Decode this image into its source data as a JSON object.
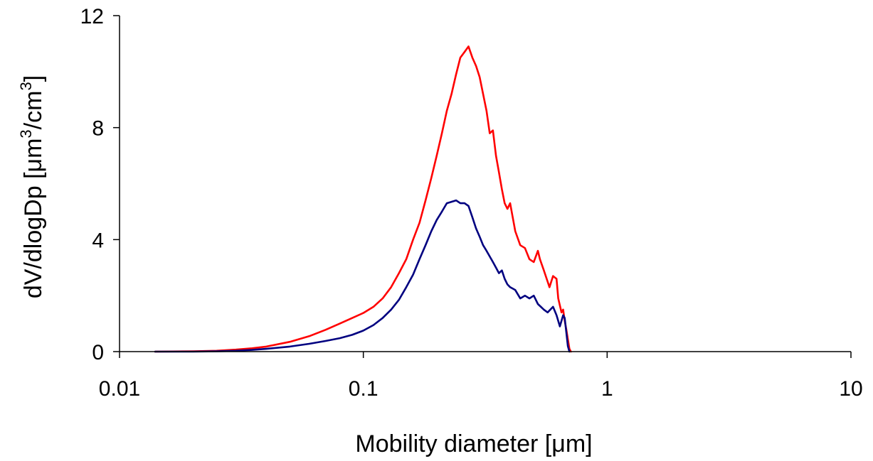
{
  "chart_data": {
    "type": "line",
    "title": "",
    "xlabel": "Mobility diameter [μm]",
    "ylabel": "dV/dlogDp [μm3/cm3]",
    "xscale": "log",
    "xlim": [
      0.01,
      10
    ],
    "ylim": [
      0,
      12
    ],
    "x_ticks": [
      "0.01",
      "0.1",
      "1",
      "10"
    ],
    "y_ticks": [
      "0",
      "4",
      "8",
      "12"
    ],
    "grid": false,
    "legend": "none",
    "series": [
      {
        "color": "#ff0000",
        "x": [
          0.014,
          0.02,
          0.025,
          0.03,
          0.035,
          0.04,
          0.05,
          0.06,
          0.07,
          0.08,
          0.09,
          0.1,
          0.11,
          0.12,
          0.13,
          0.14,
          0.15,
          0.16,
          0.17,
          0.18,
          0.19,
          0.2,
          0.21,
          0.22,
          0.23,
          0.24,
          0.25,
          0.26,
          0.27,
          0.28,
          0.29,
          0.3,
          0.31,
          0.32,
          0.33,
          0.34,
          0.35,
          0.36,
          0.37,
          0.38,
          0.39,
          0.4,
          0.41,
          0.42,
          0.44,
          0.46,
          0.48,
          0.5,
          0.52,
          0.53,
          0.55,
          0.57,
          0.58,
          0.6,
          0.62,
          0.63,
          0.65,
          0.66,
          0.67,
          0.68,
          0.7,
          0.71
        ],
        "y": [
          0,
          0.01,
          0.03,
          0.07,
          0.12,
          0.18,
          0.35,
          0.55,
          0.78,
          1.0,
          1.2,
          1.38,
          1.6,
          1.9,
          2.3,
          2.8,
          3.3,
          4.0,
          4.6,
          5.4,
          6.2,
          7.0,
          7.8,
          8.6,
          9.2,
          9.9,
          10.5,
          10.7,
          10.9,
          10.5,
          10.2,
          9.8,
          9.2,
          8.6,
          7.8,
          7.9,
          7.0,
          6.4,
          5.8,
          5.3,
          5.1,
          5.3,
          4.8,
          4.3,
          3.8,
          3.7,
          3.3,
          3.2,
          3.6,
          3.3,
          2.9,
          2.5,
          2.3,
          2.7,
          2.6,
          1.9,
          1.4,
          1.5,
          1.1,
          0.8,
          0.1,
          0
        ]
      },
      {
        "color": "#000080",
        "x": [
          0.014,
          0.02,
          0.025,
          0.03,
          0.035,
          0.04,
          0.05,
          0.06,
          0.07,
          0.08,
          0.09,
          0.1,
          0.11,
          0.12,
          0.13,
          0.14,
          0.15,
          0.16,
          0.17,
          0.18,
          0.19,
          0.2,
          0.21,
          0.22,
          0.23,
          0.24,
          0.25,
          0.26,
          0.27,
          0.28,
          0.29,
          0.3,
          0.31,
          0.32,
          0.33,
          0.34,
          0.35,
          0.36,
          0.37,
          0.38,
          0.39,
          0.4,
          0.42,
          0.44,
          0.46,
          0.48,
          0.5,
          0.52,
          0.55,
          0.57,
          0.6,
          0.62,
          0.64,
          0.65,
          0.66,
          0.67,
          0.69,
          0.7
        ],
        "y": [
          0,
          0.0,
          0.01,
          0.03,
          0.06,
          0.1,
          0.18,
          0.28,
          0.38,
          0.48,
          0.6,
          0.75,
          0.95,
          1.2,
          1.5,
          1.85,
          2.3,
          2.75,
          3.3,
          3.8,
          4.3,
          4.7,
          5.0,
          5.3,
          5.35,
          5.4,
          5.3,
          5.3,
          5.2,
          4.8,
          4.4,
          4.1,
          3.8,
          3.6,
          3.4,
          3.2,
          3.0,
          2.8,
          2.9,
          2.6,
          2.4,
          2.3,
          2.2,
          1.9,
          2.0,
          1.9,
          2.0,
          1.7,
          1.5,
          1.4,
          1.6,
          1.3,
          0.9,
          1.1,
          1.3,
          1.2,
          0.2,
          0
        ]
      }
    ]
  }
}
